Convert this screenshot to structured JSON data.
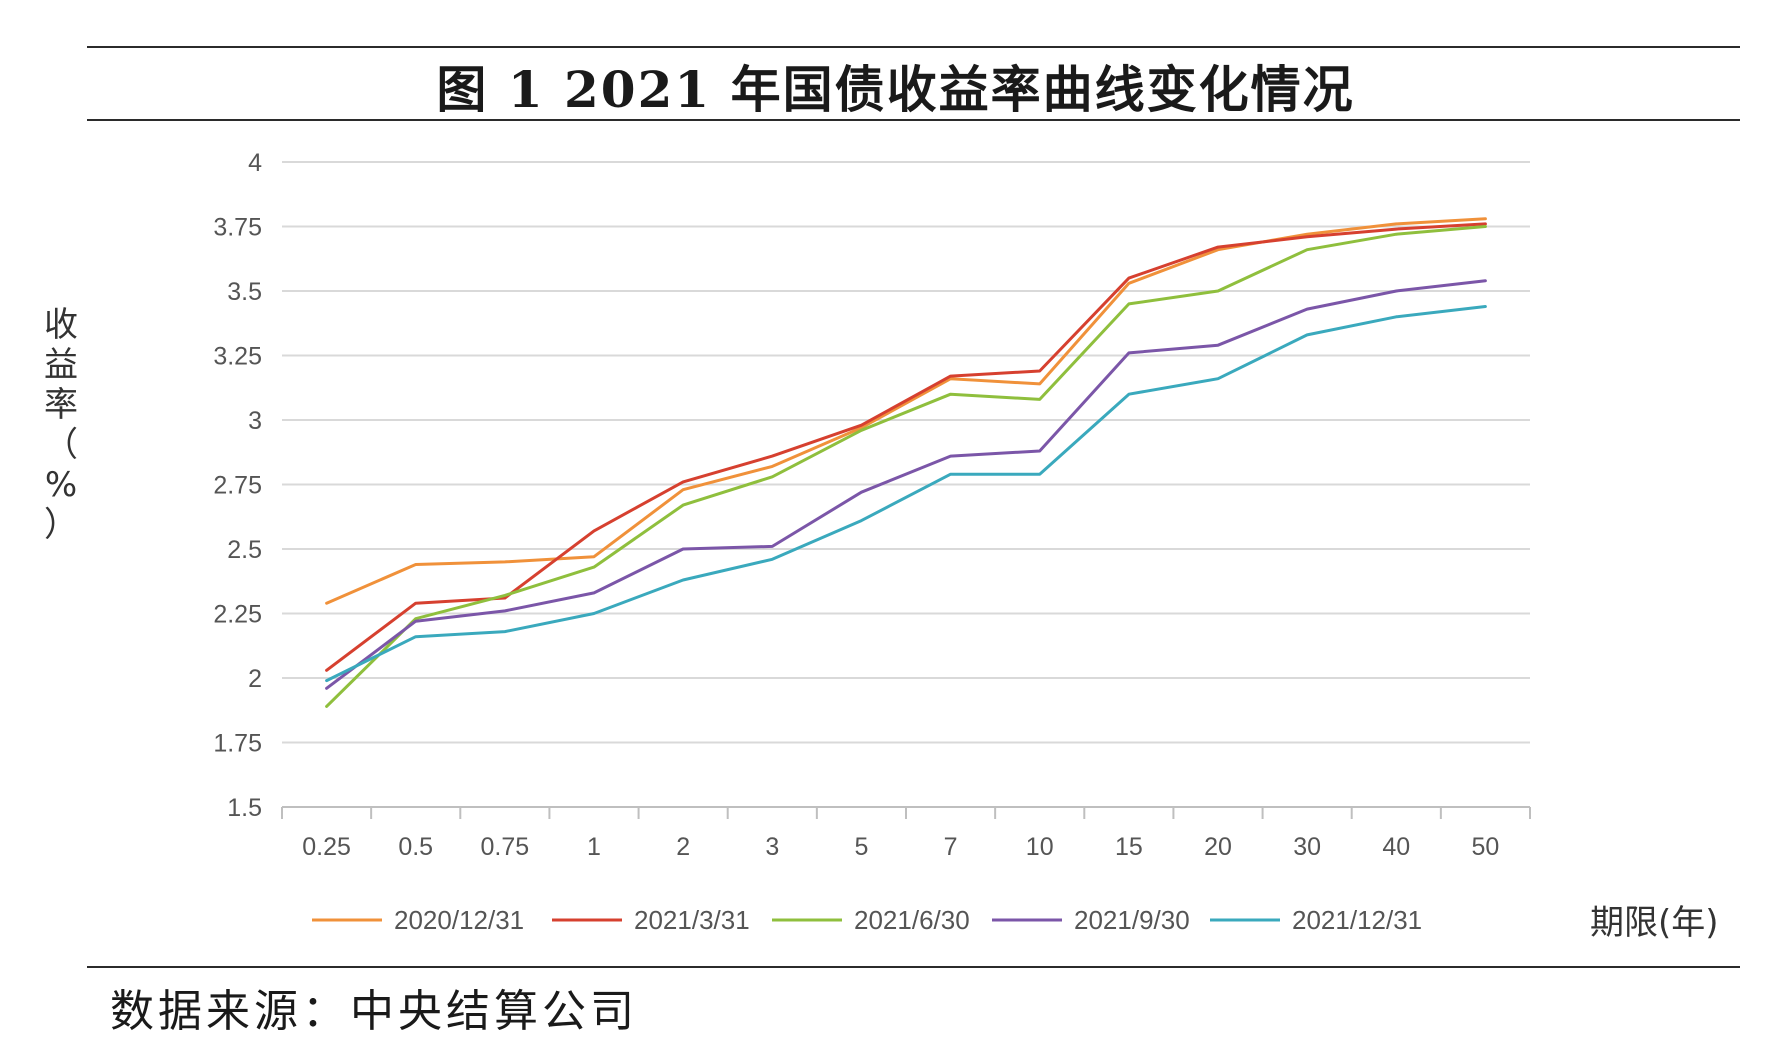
{
  "title": "图 1 2021 年国债收益率曲线变化情况",
  "source": "数据来源：中央结算公司",
  "chart_data": {
    "type": "line",
    "ylabel": "收益率（%）",
    "xlabel": "期限(年)",
    "categories": [
      "0.25",
      "0.5",
      "0.75",
      "1",
      "2",
      "3",
      "5",
      "7",
      "10",
      "15",
      "20",
      "30",
      "40",
      "50"
    ],
    "ylim": [
      1.5,
      4
    ],
    "yticks": [
      "1.5",
      "1.75",
      "2",
      "2.25",
      "2.5",
      "2.75",
      "3",
      "3.25",
      "3.5",
      "3.75",
      "4"
    ],
    "grid": true,
    "legend_position": "bottom",
    "series": [
      {
        "name": "2020/12/31",
        "color": "#f0913a",
        "values": [
          2.29,
          2.44,
          2.45,
          2.47,
          2.73,
          2.82,
          2.97,
          3.16,
          3.14,
          3.53,
          3.66,
          3.72,
          3.76,
          3.78
        ]
      },
      {
        "name": "2021/3/31",
        "color": "#d6402f",
        "values": [
          2.03,
          2.29,
          2.31,
          2.57,
          2.76,
          2.86,
          2.98,
          3.17,
          3.19,
          3.55,
          3.67,
          3.71,
          3.74,
          3.76
        ]
      },
      {
        "name": "2021/6/30",
        "color": "#8fbf3d",
        "values": [
          1.89,
          2.23,
          2.32,
          2.43,
          2.67,
          2.78,
          2.96,
          3.1,
          3.08,
          3.45,
          3.5,
          3.66,
          3.72,
          3.75
        ]
      },
      {
        "name": "2021/9/30",
        "color": "#7b56a8",
        "values": [
          1.96,
          2.22,
          2.26,
          2.33,
          2.5,
          2.51,
          2.72,
          2.86,
          2.88,
          3.26,
          3.29,
          3.43,
          3.5,
          3.54
        ]
      },
      {
        "name": "2021/12/31",
        "color": "#3aa9bd",
        "values": [
          1.99,
          2.16,
          2.18,
          2.25,
          2.38,
          2.46,
          2.61,
          2.79,
          2.79,
          3.1,
          3.16,
          3.33,
          3.4,
          3.44
        ]
      }
    ]
  }
}
